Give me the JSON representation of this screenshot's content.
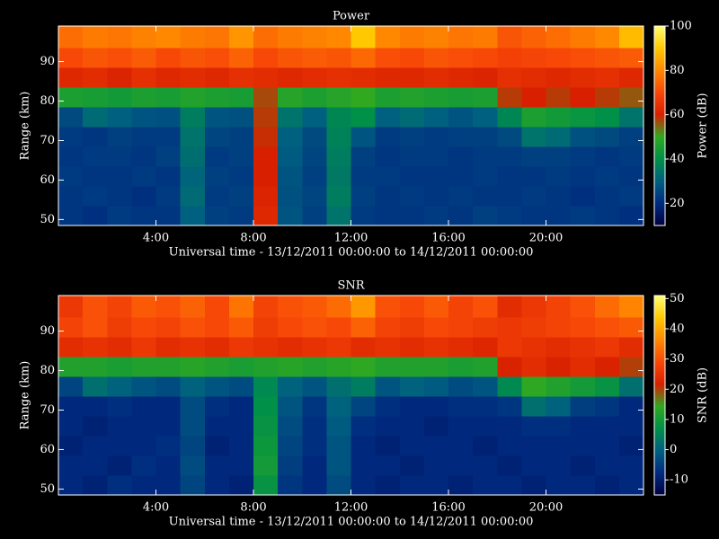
{
  "chart_data": [
    {
      "type": "heatmap",
      "title": "Power",
      "xlabel": "Universal time - 13/12/2011 00:00:00 to 14/12/2011 00:00:00",
      "ylabel": "Range (km)",
      "colorbar_label": "Power (dB)",
      "x": [
        0.5,
        1.5,
        2.5,
        3.5,
        4.5,
        5.5,
        6.5,
        7.5,
        8.5,
        9.5,
        10.5,
        11.5,
        12.5,
        13.5,
        14.5,
        15.5,
        16.5,
        17.5,
        18.5,
        19.5,
        20.5,
        21.5,
        22.5,
        23.5
      ],
      "y": [
        51,
        56,
        61,
        66,
        71,
        76,
        81,
        86,
        91,
        96
      ],
      "z": [
        [
          22,
          21,
          23,
          22,
          22,
          30,
          24,
          23,
          62,
          28,
          24,
          34,
          23,
          22,
          22,
          23,
          22,
          24,
          23,
          22,
          22,
          23,
          22,
          21
        ],
        [
          22,
          23,
          22,
          21,
          23,
          32,
          23,
          24,
          61,
          27,
          25,
          36,
          24,
          22,
          23,
          22,
          23,
          22,
          22,
          23,
          22,
          21,
          22,
          23
        ],
        [
          23,
          22,
          22,
          23,
          22,
          31,
          24,
          23,
          60,
          28,
          24,
          35,
          23,
          23,
          22,
          22,
          22,
          23,
          22,
          22,
          23,
          22,
          23,
          22
        ],
        [
          22,
          23,
          23,
          22,
          24,
          33,
          23,
          24,
          60,
          29,
          25,
          36,
          24,
          22,
          23,
          23,
          22,
          23,
          23,
          24,
          24,
          23,
          22,
          23
        ],
        [
          23,
          22,
          24,
          23,
          23,
          34,
          25,
          24,
          59,
          30,
          26,
          37,
          28,
          23,
          24,
          23,
          24,
          24,
          26,
          34,
          32,
          27,
          26,
          24
        ],
        [
          26,
          32,
          30,
          28,
          27,
          36,
          28,
          27,
          58,
          34,
          30,
          38,
          40,
          30,
          32,
          30,
          28,
          30,
          38,
          46,
          44,
          42,
          40,
          34
        ],
        [
          46,
          45,
          44,
          46,
          45,
          47,
          46,
          45,
          57,
          48,
          46,
          48,
          50,
          46,
          47,
          46,
          45,
          46,
          58,
          60,
          58,
          60,
          58,
          56
        ],
        [
          62,
          63,
          61,
          64,
          62,
          63,
          62,
          64,
          63,
          62,
          63,
          64,
          63,
          62,
          62,
          63,
          62,
          61,
          64,
          63,
          62,
          63,
          64,
          62
        ],
        [
          70,
          72,
          71,
          73,
          70,
          72,
          71,
          74,
          70,
          72,
          73,
          72,
          75,
          71,
          70,
          72,
          71,
          70,
          68,
          69,
          70,
          71,
          72,
          73
        ],
        [
          76,
          78,
          77,
          79,
          80,
          78,
          77,
          82,
          76,
          78,
          79,
          80,
          90,
          80,
          78,
          79,
          77,
          78,
          72,
          74,
          76,
          78,
          80,
          88
        ]
      ],
      "xlim": [
        0,
        24
      ],
      "ylim": [
        48.5,
        99
      ],
      "xticks": [
        {
          "value": 4,
          "label": "4:00"
        },
        {
          "value": 8,
          "label": "8:00"
        },
        {
          "value": 12,
          "label": "12:00"
        },
        {
          "value": 16,
          "label": "16:00"
        },
        {
          "value": 20,
          "label": "20:00"
        }
      ],
      "yticks": [
        50,
        60,
        70,
        80,
        90
      ],
      "clim": [
        10,
        100
      ],
      "cticks": [
        20,
        40,
        60,
        80,
        100
      ],
      "colormap": [
        "#000040",
        "#002a80",
        "#006080",
        "#009048",
        "#30a820",
        "#d82000",
        "#f84808",
        "#ff8800",
        "#ffc800",
        "#ffff70"
      ]
    },
    {
      "type": "heatmap",
      "title": "SNR",
      "xlabel": "Universal time - 13/12/2011 00:00:00 to 14/12/2011 00:00:00",
      "ylabel": "Range (km)",
      "colorbar_label": "SNR (dB)",
      "x": [
        0.5,
        1.5,
        2.5,
        3.5,
        4.5,
        5.5,
        6.5,
        7.5,
        8.5,
        9.5,
        10.5,
        11.5,
        12.5,
        13.5,
        14.5,
        15.5,
        16.5,
        17.5,
        18.5,
        19.5,
        20.5,
        21.5,
        22.5,
        23.5
      ],
      "y": [
        51,
        56,
        61,
        66,
        71,
        76,
        81,
        86,
        91,
        96
      ],
      "z": [
        [
          -8,
          -9,
          -7,
          -8,
          -8,
          -4,
          -8,
          -9,
          8,
          -6,
          -8,
          -3,
          -8,
          -9,
          -8,
          -8,
          -9,
          -8,
          -8,
          -9,
          -8,
          -8,
          -9,
          -8
        ],
        [
          -8,
          -8,
          -9,
          -7,
          -8,
          -3,
          -8,
          -8,
          10,
          -5,
          -8,
          -2,
          -8,
          -8,
          -9,
          -8,
          -8,
          -8,
          -9,
          -8,
          -8,
          -9,
          -8,
          -8
        ],
        [
          -9,
          -8,
          -8,
          -8,
          -7,
          -4,
          -9,
          -8,
          9,
          -4,
          -7,
          -2,
          -8,
          -9,
          -8,
          -8,
          -8,
          -9,
          -8,
          -8,
          -8,
          -8,
          -8,
          -9
        ],
        [
          -8,
          -9,
          -8,
          -8,
          -8,
          -3,
          -8,
          -8,
          8,
          -3,
          -7,
          -1,
          -7,
          -8,
          -8,
          -9,
          -8,
          -8,
          -8,
          -7,
          -7,
          -8,
          -8,
          -8
        ],
        [
          -8,
          -8,
          -7,
          -8,
          -8,
          -3,
          -7,
          -8,
          7,
          -2,
          -6,
          0,
          -4,
          -7,
          -8,
          -8,
          -7,
          -7,
          -6,
          2,
          0,
          -5,
          -6,
          -8
        ],
        [
          -4,
          2,
          0,
          -2,
          -3,
          0,
          -2,
          -3,
          6,
          0,
          -2,
          2,
          4,
          -2,
          0,
          -1,
          -3,
          -2,
          6,
          14,
          12,
          10,
          8,
          2
        ],
        [
          12,
          12,
          11,
          12,
          12,
          13,
          12,
          11,
          12,
          13,
          12,
          13,
          14,
          12,
          12,
          12,
          11,
          12,
          22,
          24,
          22,
          24,
          22,
          20
        ],
        [
          24,
          25,
          24,
          26,
          24,
          25,
          24,
          26,
          25,
          24,
          25,
          26,
          24,
          25,
          24,
          25,
          24,
          23,
          26,
          25,
          24,
          25,
          26,
          24
        ],
        [
          28,
          30,
          27,
          29,
          28,
          30,
          29,
          31,
          27,
          29,
          30,
          29,
          32,
          28,
          27,
          29,
          28,
          27,
          26,
          27,
          28,
          29,
          30,
          31
        ],
        [
          26,
          30,
          28,
          31,
          30,
          32,
          29,
          34,
          28,
          30,
          31,
          33,
          38,
          30,
          29,
          31,
          28,
          30,
          24,
          26,
          28,
          30,
          33,
          36
        ]
      ],
      "xlim": [
        0,
        24
      ],
      "ylim": [
        48.5,
        99
      ],
      "xticks": [
        {
          "value": 4,
          "label": "4:00"
        },
        {
          "value": 8,
          "label": "8:00"
        },
        {
          "value": 12,
          "label": "12:00"
        },
        {
          "value": 16,
          "label": "16:00"
        },
        {
          "value": 20,
          "label": "20:00"
        }
      ],
      "yticks": [
        50,
        60,
        70,
        80,
        90
      ],
      "clim": [
        -15,
        51
      ],
      "cticks": [
        -10,
        0,
        10,
        20,
        30,
        40,
        50
      ],
      "colormap": [
        "#000040",
        "#002a80",
        "#006080",
        "#009048",
        "#30a820",
        "#d82000",
        "#f84808",
        "#ff8800",
        "#ffc800",
        "#ffff70"
      ]
    }
  ]
}
